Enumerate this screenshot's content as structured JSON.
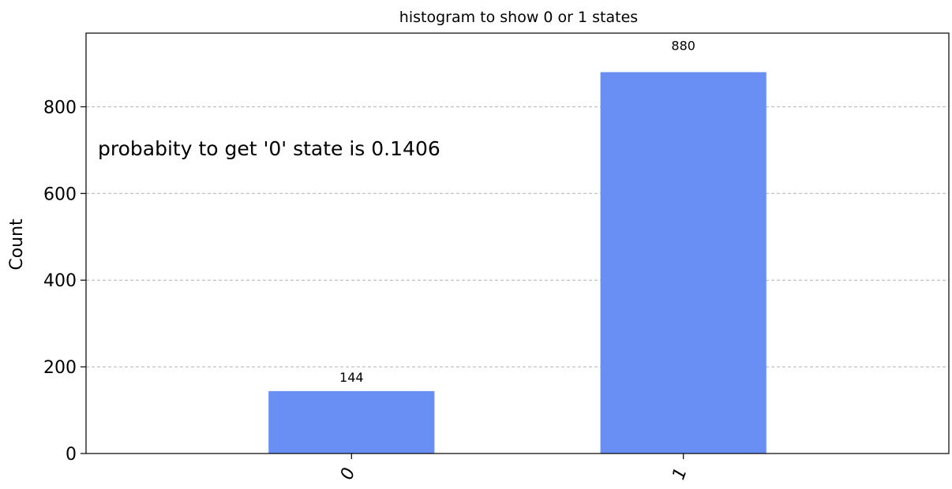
{
  "chart_data": {
    "type": "bar",
    "title": "histogram to show 0 or 1 states",
    "xlabel": "",
    "ylabel": "Count",
    "categories": [
      "0",
      "1"
    ],
    "values": [
      144,
      880
    ],
    "data_labels": [
      "144",
      "880"
    ],
    "ylim": [
      0,
      970
    ],
    "yticks": [
      0,
      200,
      400,
      600,
      800
    ],
    "ytick_labels": [
      "0",
      "200",
      "400",
      "600",
      "800"
    ],
    "grid": true,
    "grid_axis": "y",
    "legend": "none",
    "bar_color": "#6a8ff4",
    "annotation": "probabity to get '0' state is 0.1406"
  }
}
